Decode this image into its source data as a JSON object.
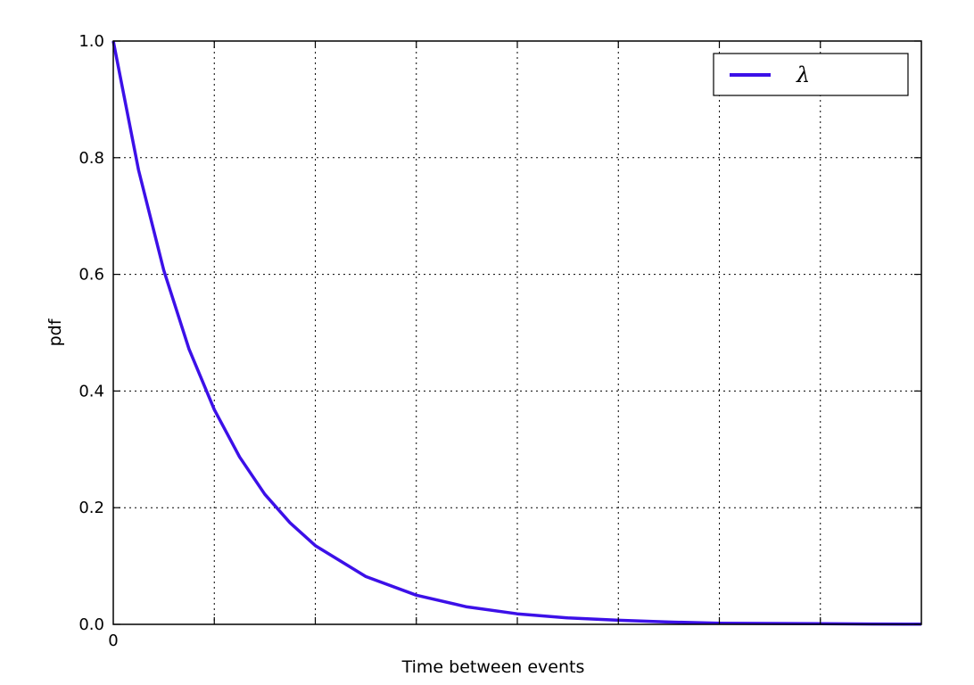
{
  "chart_data": {
    "type": "line",
    "title": "",
    "xlabel": "Time between events",
    "ylabel": "pdf",
    "xlim": [
      0,
      8
    ],
    "ylim": [
      0,
      1.0
    ],
    "x_tick_labels": [
      "0"
    ],
    "y_ticks": [
      0.0,
      0.2,
      0.4,
      0.6,
      0.8,
      1.0
    ],
    "y_tick_labels": [
      "0.0",
      "0.2",
      "0.4",
      "0.6",
      "0.8",
      "1.0"
    ],
    "grid": true,
    "legend_position": "top-right",
    "series": [
      {
        "name": "λ",
        "color": "#3c10e8",
        "x": [
          0,
          0.25,
          0.5,
          0.75,
          1,
          1.25,
          1.5,
          1.75,
          2,
          2.5,
          3,
          3.5,
          4,
          4.5,
          5,
          5.5,
          6,
          6.5,
          7,
          7.5,
          8
        ],
        "y": [
          1.0,
          0.779,
          0.607,
          0.472,
          0.368,
          0.287,
          0.223,
          0.174,
          0.135,
          0.082,
          0.05,
          0.03,
          0.018,
          0.011,
          0.007,
          0.004,
          0.002,
          0.0015,
          0.001,
          0.0006,
          0.0003
        ]
      }
    ]
  }
}
